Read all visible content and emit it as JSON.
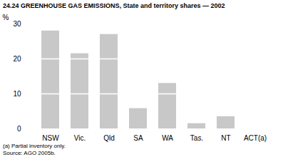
{
  "chart_data": {
    "type": "bar",
    "title": "24.24 GREENHOUSE GAS EMISSIONS, State and territory shares — 2002",
    "y_label": "%",
    "categories": [
      "NSW",
      "Vic.",
      "Qld",
      "SA",
      "WA",
      "Tas.",
      "NT",
      "ACT(a)"
    ],
    "values": [
      28,
      21.5,
      27,
      5.8,
      13,
      1.5,
      3.5,
      0
    ],
    "color": "#c8c8c8",
    "ylim": [
      0,
      30
    ],
    "yticks": [
      0,
      10,
      20,
      30
    ],
    "grid": true,
    "footnotes": [
      "(a) Partial inventory only.",
      "Source: AGO 2005b."
    ]
  }
}
